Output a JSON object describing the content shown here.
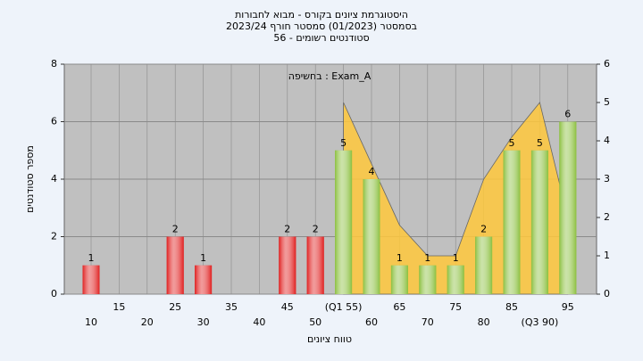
{
  "chart_data": {
    "type": "bar",
    "title_lines": [
      "היסטוגרמת ציונים בקורס - מבוא לחבורות",
      "בסמסטר  (01/2023)  סמסטר חורף 2023/24",
      "סטודנטים רשומים - 56"
    ],
    "annotation": "בחשיפה : Exam_A",
    "ylabel": "מספר סטודנטים",
    "xlabel": "טווח ציונים",
    "categories": [
      "10",
      "15",
      "20",
      "25",
      "30",
      "35",
      "40",
      "45",
      "50",
      "(Q1 55)",
      "60",
      "65",
      "70",
      "75",
      "80",
      "85",
      "(Q3 90)",
      "95"
    ],
    "values": [
      1,
      0,
      0,
      2,
      1,
      0,
      0,
      2,
      2,
      5,
      4,
      1,
      1,
      1,
      2,
      5,
      5,
      6
    ],
    "colors": [
      "#e02020",
      "#e02020",
      "#e02020",
      "#e02020",
      "#e02020",
      "#e02020",
      "#e02020",
      "#e02020",
      "#e02020",
      "#8cc040",
      "#8cc040",
      "#8cc040",
      "#8cc040",
      "#8cc040",
      "#8cc040",
      "#8cc040",
      "#8cc040",
      "#8cc040"
    ],
    "area": {
      "type": "area",
      "axis": "y2",
      "color": "#ffc83c",
      "values": [
        null,
        null,
        null,
        null,
        null,
        null,
        null,
        null,
        null,
        5,
        3.4,
        1.8,
        1,
        1,
        3,
        4.1,
        5,
        2
      ]
    },
    "ylim": [
      0,
      8
    ],
    "yticks": [
      0,
      2,
      4,
      6,
      8
    ],
    "y2lim": [
      0,
      6
    ],
    "y2ticks": [
      0,
      1,
      2,
      3,
      4,
      5,
      6
    ],
    "grid": true
  }
}
